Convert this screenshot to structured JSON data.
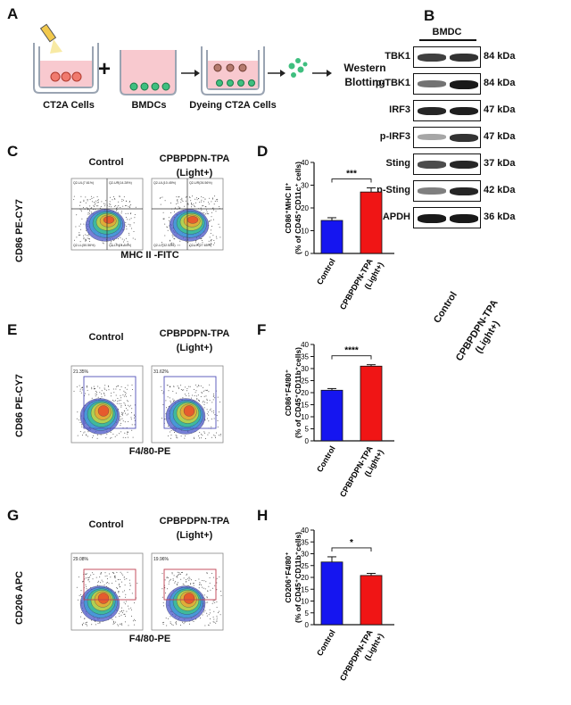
{
  "panel_letters": [
    "A",
    "B",
    "C",
    "D",
    "E",
    "F",
    "G",
    "H"
  ],
  "panel_a": {
    "steps": [
      "CT2A Cells",
      "BMDCs",
      "Dyeing CT2A Cells"
    ],
    "plus": "+",
    "final": "Western Blotting"
  },
  "panel_b": {
    "header": "BMDC",
    "rows": [
      {
        "name": "TBK1",
        "kda": "84 kDa",
        "bands": [
          0.75,
          0.8
        ]
      },
      {
        "name": "p-TBK1",
        "kda": "84 kDa",
        "bands": [
          0.55,
          0.9
        ]
      },
      {
        "name": "IRF3",
        "kda": "47 kDa",
        "bands": [
          0.85,
          0.88
        ]
      },
      {
        "name": "p-IRF3",
        "kda": "47 kDa",
        "bands": [
          0.35,
          0.8
        ]
      },
      {
        "name": "Sting",
        "kda": "37 kDa",
        "bands": [
          0.7,
          0.85
        ]
      },
      {
        "name": "p-Sting",
        "kda": "42 kDa",
        "bands": [
          0.5,
          0.85
        ]
      },
      {
        "name": "GAPDH",
        "kda": "36 kDa",
        "bands": [
          0.9,
          0.9
        ]
      }
    ],
    "xlabels": [
      "Control",
      "CPBPDPN-TPA",
      "(Light+)"
    ]
  },
  "flow": {
    "control": "Control",
    "treat": "CPBPDPN-TPA",
    "light": "(Light+)",
    "c": {
      "ylabel": "CD86 PE-CY7",
      "xlabel": "MHC II -FITC",
      "control_quads": [
        "Q2-UL(7.61%)",
        "Q2-UR(14.28%)",
        "Q2-LL(50.56%)",
        "Q2-LR(21.54%)"
      ],
      "treat_quads": [
        "Q2-UL(10.45%)",
        "Q2-UR(26.56%)",
        "Q2-LL(32.52%)",
        "Q2-LR(27.65%)"
      ]
    },
    "e": {
      "ylabel": "CD86 PE-CY7",
      "xlabel": "F4/80-PE",
      "control_pct": "21.35%",
      "treat_pct": "31.62%"
    },
    "g": {
      "ylabel": "CD206 APC",
      "xlabel": "F4/80-PE",
      "control_pct": "29.08%",
      "treat_pct": "19.96%"
    }
  },
  "chart_data": [
    {
      "id": "D",
      "type": "bar",
      "categories": [
        "Control",
        "CPBPDPN-TPA (Light+)"
      ],
      "tick_labels": [
        "Control",
        "CPBPDPN-TPA",
        "(Light+)"
      ],
      "values": [
        14.5,
        27
      ],
      "errors": [
        1.2,
        1.8
      ],
      "colors": [
        "#1515f0",
        "#f01515"
      ],
      "ylabel_1": "CD86⁺MHC II⁺",
      "ylabel_2": "(% of CD45⁺CD11c⁺ cells)",
      "ylim": [
        0,
        40
      ],
      "yticks": [
        0,
        10,
        20,
        30,
        40
      ],
      "significance": "***"
    },
    {
      "id": "F",
      "type": "bar",
      "categories": [
        "Control",
        "CPBPDPN-TPA (Light+)"
      ],
      "tick_labels": [
        "Control",
        "CPBPDPN-TPA",
        "(Light+)"
      ],
      "values": [
        21,
        31
      ],
      "errors": [
        0.7,
        0.6
      ],
      "colors": [
        "#1515f0",
        "#f01515"
      ],
      "ylabel_1": "CD86⁺F4/80⁺",
      "ylabel_2": "(% of CD45⁺CD11b⁺cells)",
      "ylim": [
        0,
        40
      ],
      "yticks": [
        0,
        5,
        10,
        15,
        20,
        25,
        30,
        35,
        40
      ],
      "significance": "****"
    },
    {
      "id": "H",
      "type": "bar",
      "categories": [
        "Control",
        "CPBPDPN-TPA (Light+)"
      ],
      "tick_labels": [
        "Control",
        "CPBPDPN-TPA",
        "(Light+)"
      ],
      "values": [
        26.5,
        20.8
      ],
      "errors": [
        2.2,
        0.9
      ],
      "colors": [
        "#1515f0",
        "#f01515"
      ],
      "ylabel_1": "CD206⁺F4/80⁺",
      "ylabel_2": "(% of CD45⁺CD11b⁺cells)",
      "ylim": [
        0,
        40
      ],
      "yticks": [
        0,
        5,
        10,
        15,
        20,
        25,
        30,
        35,
        40
      ],
      "significance": "*"
    }
  ]
}
